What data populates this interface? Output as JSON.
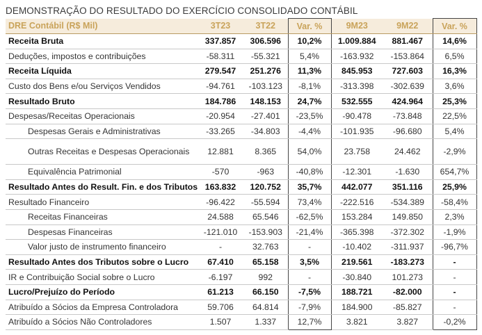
{
  "title": "DEMONSTRAÇÃO DO RESULTADO DO EXERCÍCIO CONSOLIDADO CONTÁBIL",
  "headers": [
    "DRE Contábil (R$ Mil)",
    "3T23",
    "3T22",
    "Var. %",
    "9M23",
    "9M22",
    "Var. %"
  ],
  "rows": [
    {
      "label": "Receita Bruta",
      "bold": true,
      "indent": false,
      "values": [
        "337.857",
        "306.596",
        "10,2%",
        "1.009.884",
        "881.467",
        "14,6%"
      ]
    },
    {
      "label": "Deduções, impostos e contribuições",
      "bold": false,
      "indent": false,
      "values": [
        "-58.311",
        "-55.321",
        "5,4%",
        "-163.932",
        "-153.864",
        "6,5%"
      ]
    },
    {
      "label": "Receita Líquida",
      "bold": true,
      "indent": false,
      "values": [
        "279.547",
        "251.276",
        "11,3%",
        "845.953",
        "727.603",
        "16,3%"
      ]
    },
    {
      "label": "Custo dos Bens e/ou Serviços Vendidos",
      "bold": false,
      "indent": false,
      "values": [
        "-94.761",
        "-103.123",
        "-8,1%",
        "-313.398",
        "-302.639",
        "3,6%"
      ]
    },
    {
      "label": "Resultado Bruto",
      "bold": true,
      "indent": false,
      "values": [
        "184.786",
        "148.153",
        "24,7%",
        "532.555",
        "424.964",
        "25,3%"
      ]
    },
    {
      "label": "Despesas/Receitas Operacionais",
      "bold": false,
      "indent": false,
      "values": [
        "-20.954",
        "-27.401",
        "-23,5%",
        "-90.478",
        "-73.848",
        "22,5%"
      ]
    },
    {
      "label": "Despesas Gerais e Administrativas",
      "bold": false,
      "indent": true,
      "values": [
        "-33.265",
        "-34.803",
        "-4,4%",
        "-101.935",
        "-96.680",
        "5,4%"
      ]
    },
    {
      "label": "Outras Receitas e Despesas Operacionais",
      "bold": false,
      "indent": true,
      "tall": true,
      "values": [
        "12.881",
        "8.365",
        "54,0%",
        "23.758",
        "24.462",
        "-2,9%"
      ]
    },
    {
      "label": "Equivalência Patrimonial",
      "bold": false,
      "indent": true,
      "values": [
        "-570",
        "-963",
        "-40,8%",
        "-12.301",
        "-1.630",
        "654,7%"
      ]
    },
    {
      "label": "Resultado Antes do Result. Fin. e dos Tributos",
      "bold": true,
      "indent": false,
      "values": [
        "163.832",
        "120.752",
        "35,7%",
        "442.077",
        "351.116",
        "25,9%"
      ]
    },
    {
      "label": "Resultado Financeiro",
      "bold": false,
      "indent": false,
      "values": [
        "-96.422",
        "-55.594",
        "73,4%",
        "-222.516",
        "-534.389",
        "-58,4%"
      ]
    },
    {
      "label": "Receitas Financeiras",
      "bold": false,
      "indent": true,
      "values": [
        "24.588",
        "65.546",
        "-62,5%",
        "153.284",
        "149.850",
        "2,3%"
      ]
    },
    {
      "label": "Despesas Financeiras",
      "bold": false,
      "indent": true,
      "values": [
        "-121.010",
        "-153.903",
        "-21,4%",
        "-365.398",
        "-372.302",
        "-1,9%"
      ]
    },
    {
      "label": "Valor justo de instrumento financeiro",
      "bold": false,
      "indent": true,
      "values": [
        "-",
        "32.763",
        "-",
        "-10.402",
        "-311.937",
        "-96,7%"
      ]
    },
    {
      "label": "Resultado Antes dos Tributos sobre o Lucro",
      "bold": true,
      "indent": false,
      "values": [
        "67.410",
        "65.158",
        "3,5%",
        "219.561",
        "-183.273",
        "-"
      ]
    },
    {
      "label": "IR e Contribuição Social sobre o Lucro",
      "bold": false,
      "indent": false,
      "values": [
        "-6.197",
        "992",
        "-",
        "-30.840",
        "101.273",
        "-"
      ]
    },
    {
      "label": "Lucro/Prejuízo do Período",
      "bold": true,
      "indent": false,
      "values": [
        "61.213",
        "66.150",
        "-7,5%",
        "188.721",
        "-82.000",
        "-"
      ]
    },
    {
      "label": "Atribuído a Sócios da Empresa Controladora",
      "bold": false,
      "indent": false,
      "values": [
        "59.706",
        "64.814",
        "-7,9%",
        "184.900",
        "-85.827",
        "-"
      ]
    },
    {
      "label": "Atribuído a Sócios Não Controladores",
      "bold": false,
      "indent": false,
      "values": [
        "1.507",
        "1.337",
        "12,7%",
        "3.821",
        "3.827",
        "-0,2%"
      ]
    }
  ]
}
